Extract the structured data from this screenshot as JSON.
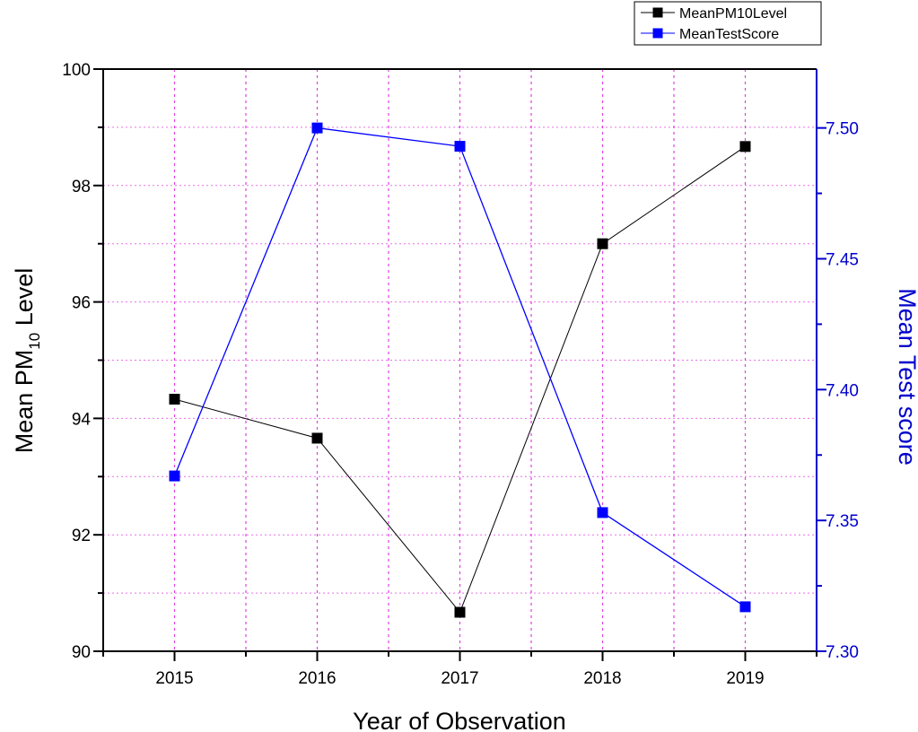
{
  "chart_data": {
    "type": "line",
    "title": "",
    "xlabel": "Year of Observation",
    "ylabel_left": {
      "prefix": "Mean PM",
      "subscript": "10",
      "suffix": " Level"
    },
    "ylabel_right": "Mean Test score",
    "categories": [
      "2015",
      "2016",
      "2017",
      "2018",
      "2019"
    ],
    "xlim": [
      2014.5,
      2019.5
    ],
    "ylim_left": [
      90,
      100
    ],
    "ylim_right": [
      7.3,
      7.5225
    ],
    "left_ticks": [
      "90",
      "92",
      "94",
      "96",
      "98",
      "100"
    ],
    "right_ticks": [
      "7.30",
      "7.35",
      "7.40",
      "7.45",
      "7.50"
    ],
    "grid": true,
    "legend_position": "top-right",
    "series": [
      {
        "name": "MeanPM10Level",
        "axis": "left",
        "color": "#000000",
        "values": [
          94.33,
          93.66,
          90.67,
          97.0,
          98.67
        ]
      },
      {
        "name": "MeanTestScore",
        "axis": "right",
        "color": "#0000ff",
        "values": [
          7.367,
          7.5,
          7.493,
          7.353,
          7.317
        ]
      }
    ],
    "colors": {
      "left_axis": "#000000",
      "right_axis": "#0000cc",
      "grid": "#e040e0"
    }
  }
}
